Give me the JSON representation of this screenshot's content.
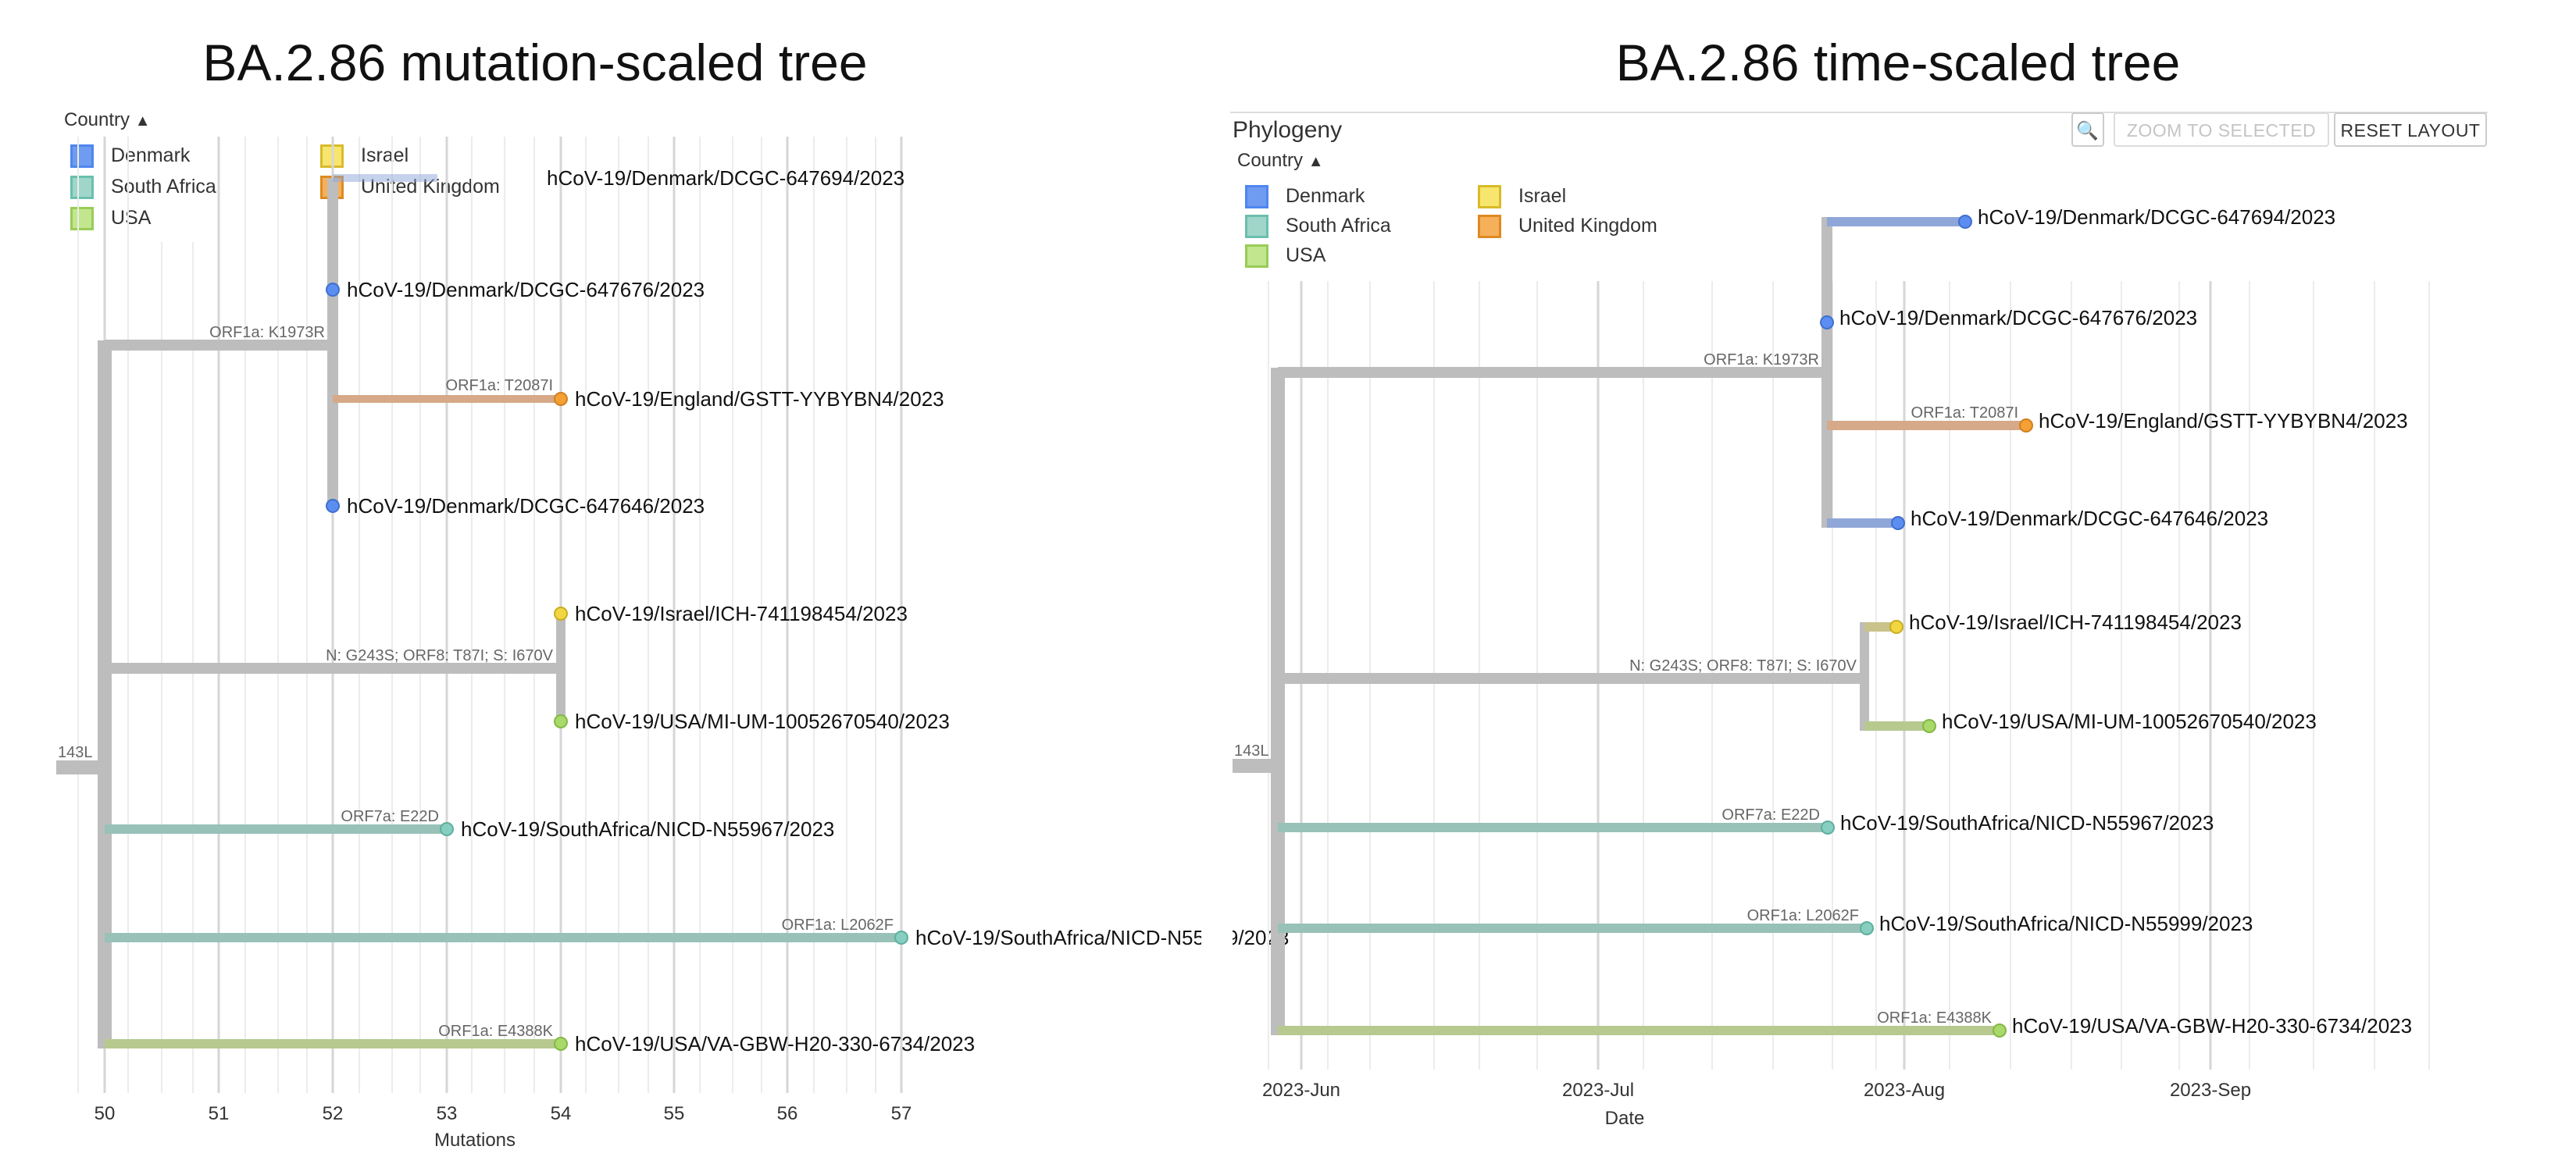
{
  "left": {
    "title": "BA.2.86 mutation-scaled tree",
    "country_toggle": "Country",
    "legend": [
      {
        "label": "Denmark",
        "color": "#4f86f0"
      },
      {
        "label": "South Africa",
        "color": "#86cfc0"
      },
      {
        "label": "USA",
        "color": "#a8d96a"
      },
      {
        "label": "Israel",
        "color": "#f2d641"
      },
      {
        "label": "United Kingdom",
        "color": "#f4a035"
      }
    ],
    "x_axis": {
      "label": "Mutations",
      "ticks": [
        "50",
        "51",
        "52",
        "53",
        "54",
        "55",
        "56",
        "57"
      ]
    }
  },
  "right": {
    "title": "BA.2.86 time-scaled tree",
    "panel_label": "Phylogeny",
    "zoom_to_selected": "ZOOM TO SELECTED",
    "reset_layout": "RESET LAYOUT",
    "country_toggle": "Country",
    "legend": [
      {
        "label": "Denmark",
        "color": "#4f86f0"
      },
      {
        "label": "South Africa",
        "color": "#86cfc0"
      },
      {
        "label": "USA",
        "color": "#a8d96a"
      },
      {
        "label": "Israel",
        "color": "#f2d641"
      },
      {
        "label": "United Kingdom",
        "color": "#f4a035"
      }
    ],
    "x_axis": {
      "label": "Date",
      "ticks": [
        "2023-Jun",
        "2023-Jul",
        "2023-Aug",
        "2023-Sep"
      ]
    }
  },
  "tree": {
    "root_label": "143L",
    "tips": [
      {
        "name": "hCoV-19/Denmark/DCGC-647694/2023",
        "country": "Denmark"
      },
      {
        "name": "hCoV-19/Denmark/DCGC-647676/2023",
        "country": "Denmark"
      },
      {
        "name": "hCoV-19/England/GSTT-YYBYBN4/2023",
        "country": "United Kingdom"
      },
      {
        "name": "hCoV-19/Denmark/DCGC-647646/2023",
        "country": "Denmark"
      },
      {
        "name": "hCoV-19/Israel/ICH-741198454/2023",
        "country": "Israel"
      },
      {
        "name": "hCoV-19/USA/MI-UM-10052670540/2023",
        "country": "USA"
      },
      {
        "name": "hCoV-19/SouthAfrica/NICD-N55967/2023",
        "country": "South Africa"
      },
      {
        "name": "hCoV-19/SouthAfrica/NICD-N55999/2023",
        "country": "South Africa"
      },
      {
        "name": "hCoV-19/USA/VA-GBW-H20-330-6734/2023",
        "country": "USA"
      }
    ],
    "mutations": {
      "denmark_clade": "ORF1a: K1973R",
      "england": "ORF1a: T2087I",
      "israel_usa_clade": "N: G243S; ORF8: T87I; S: I670V",
      "sa_55967": "ORF7a: E22D",
      "sa_55999": "ORF1a: L2062F",
      "usa_va": "ORF1a: E4388K"
    }
  }
}
